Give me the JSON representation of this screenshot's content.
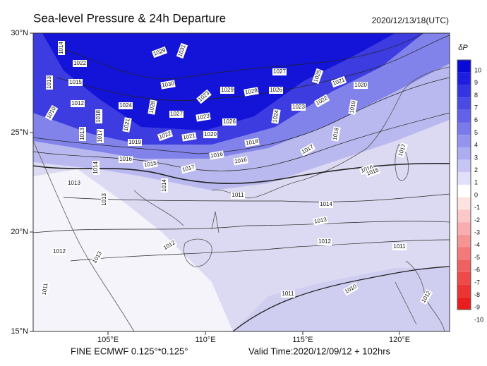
{
  "title": "Sea-level Pressure & 24h Departure",
  "valid_utc": "2020/12/13/18(UTC)",
  "lat_labels": [
    "30°N",
    "25°N",
    "20°N",
    "15°N"
  ],
  "lon_labels": [
    "105°E",
    "110°E",
    "115°E",
    "120°E"
  ],
  "colorbar": {
    "title": "δP",
    "labels": [
      "10",
      "9",
      "8",
      "7",
      "6",
      "5",
      "4",
      "3",
      "2",
      "1",
      "0",
      "-1",
      "-2",
      "-3",
      "-4",
      "-5",
      "-6",
      "-7",
      "-8",
      "-9",
      "-10"
    ],
    "colors": [
      "#0a0ad6",
      "#1e1ee0",
      "#3434e2",
      "#4a4ae4",
      "#6262e8",
      "#7a7aea",
      "#9494ee",
      "#acacf1",
      "#c6c6f5",
      "#e0e0fa",
      "#ffffff",
      "#fde2e2",
      "#fbc8c8",
      "#f8aeae",
      "#f59494",
      "#f27a7a",
      "#f06262",
      "#ee4a4a",
      "#ec3434",
      "#ea1e1e"
    ]
  },
  "isobar_labels": [
    "1014",
    "1022",
    "1029",
    "1031",
    "1015",
    "1013",
    "1012",
    "1010",
    "1030",
    "1024",
    "1028",
    "1018",
    "1027",
    "1023",
    "1029",
    "1028",
    "1027",
    "1025",
    "1026",
    "1021",
    "1020",
    "1023",
    "1022",
    "1019",
    "1021",
    "1017",
    "1013",
    "1019",
    "1022",
    "1021",
    "1020",
    "1023",
    "1026",
    "1024",
    "1018",
    "1016",
    "1015",
    "1017",
    "1016",
    "1016",
    "1018",
    "1017",
    "1017",
    "1016",
    "1015",
    "1014",
    "1014",
    "1013",
    "1013",
    "1011",
    "1014",
    "1013",
    "1012",
    "1012",
    "1012",
    "1011",
    "1013",
    "1011",
    "1010",
    "1011",
    "1012"
  ],
  "footer": {
    "model": "FINE ECMWF 0.125°*0.125°",
    "valid_time": "Valid Time:2020/12/09/12 + 102hrs"
  }
}
